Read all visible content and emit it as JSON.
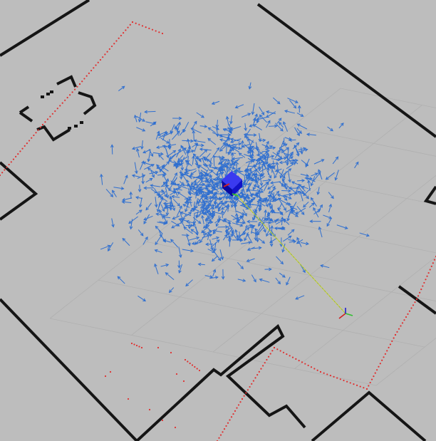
{
  "viewport": {
    "background_color": "#bdbdbd",
    "grid_color": "#b0b0b0",
    "wall_color": "#151515",
    "particle_color": "#2f6fd0",
    "laser_color": "#e03030",
    "robot_color": "#1010cc",
    "path_color": "#c8d23a",
    "goal_marker": "axis-triad-icon",
    "robot_marker": "robot-cube-icon",
    "particle_marker": "pose-arrow-icon",
    "particle_count_shown": 900
  }
}
